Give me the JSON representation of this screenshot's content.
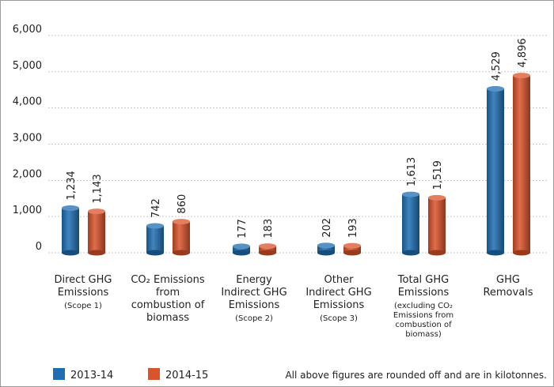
{
  "chart_data": {
    "type": "bar",
    "categories": [
      {
        "lines": [
          {
            "text": "Direct GHG",
            "size": "main"
          },
          {
            "text": "Emissions",
            "size": "main"
          },
          {
            "text": "(Scope 1)",
            "size": "small"
          }
        ]
      },
      {
        "lines": [
          {
            "text": "CO₂ Emissions",
            "size": "main"
          },
          {
            "text": "from",
            "size": "main"
          },
          {
            "text": "combustion of",
            "size": "main"
          },
          {
            "text": "biomass",
            "size": "main"
          }
        ]
      },
      {
        "lines": [
          {
            "text": "Energy",
            "size": "main"
          },
          {
            "text": "Indirect GHG",
            "size": "main"
          },
          {
            "text": "Emissions",
            "size": "main"
          },
          {
            "text": "(Scope 2)",
            "size": "small"
          }
        ]
      },
      {
        "lines": [
          {
            "text": "Other",
            "size": "main"
          },
          {
            "text": "Indirect GHG",
            "size": "main"
          },
          {
            "text": "Emissions",
            "size": "main"
          },
          {
            "text": "(Scope 3)",
            "size": "small"
          }
        ]
      },
      {
        "lines": [
          {
            "text": "Total GHG",
            "size": "main"
          },
          {
            "text": "Emissions",
            "size": "main"
          },
          {
            "text": "(excluding CO₂",
            "size": "small"
          },
          {
            "text": "Emissions from",
            "size": "small"
          },
          {
            "text": "combustion of",
            "size": "small"
          },
          {
            "text": "biomass)",
            "size": "small"
          }
        ]
      },
      {
        "lines": [
          {
            "text": "GHG",
            "size": "main"
          },
          {
            "text": "Removals",
            "size": "main"
          }
        ]
      }
    ],
    "series": [
      {
        "name": "2013-14",
        "color": "#1f6eb3",
        "values": [
          1234,
          742,
          177,
          202,
          1613,
          4529
        ],
        "labels": [
          "1,234",
          "742",
          "177",
          "202",
          "1,613",
          "4,529"
        ]
      },
      {
        "name": "2014-15",
        "color": "#d9532b",
        "values": [
          1143,
          860,
          183,
          193,
          1519,
          4896
        ],
        "labels": [
          "1,143",
          "860",
          "183",
          "193",
          "1,519",
          "4,896"
        ]
      }
    ],
    "yticks": [
      {
        "value": 0,
        "label": "0"
      },
      {
        "value": 1000,
        "label": "1,000"
      },
      {
        "value": 2000,
        "label": "2,000"
      },
      {
        "value": 3000,
        "label": "3,000"
      },
      {
        "value": 4000,
        "label": "4,000"
      },
      {
        "value": 5000,
        "label": "5,000"
      },
      {
        "value": 6000,
        "label": "6,000"
      }
    ],
    "ylim": [
      0,
      6000
    ],
    "grid": true,
    "legend_position": "bottom-left",
    "note": "All above figures are rounded off and are in kilotonnes."
  }
}
